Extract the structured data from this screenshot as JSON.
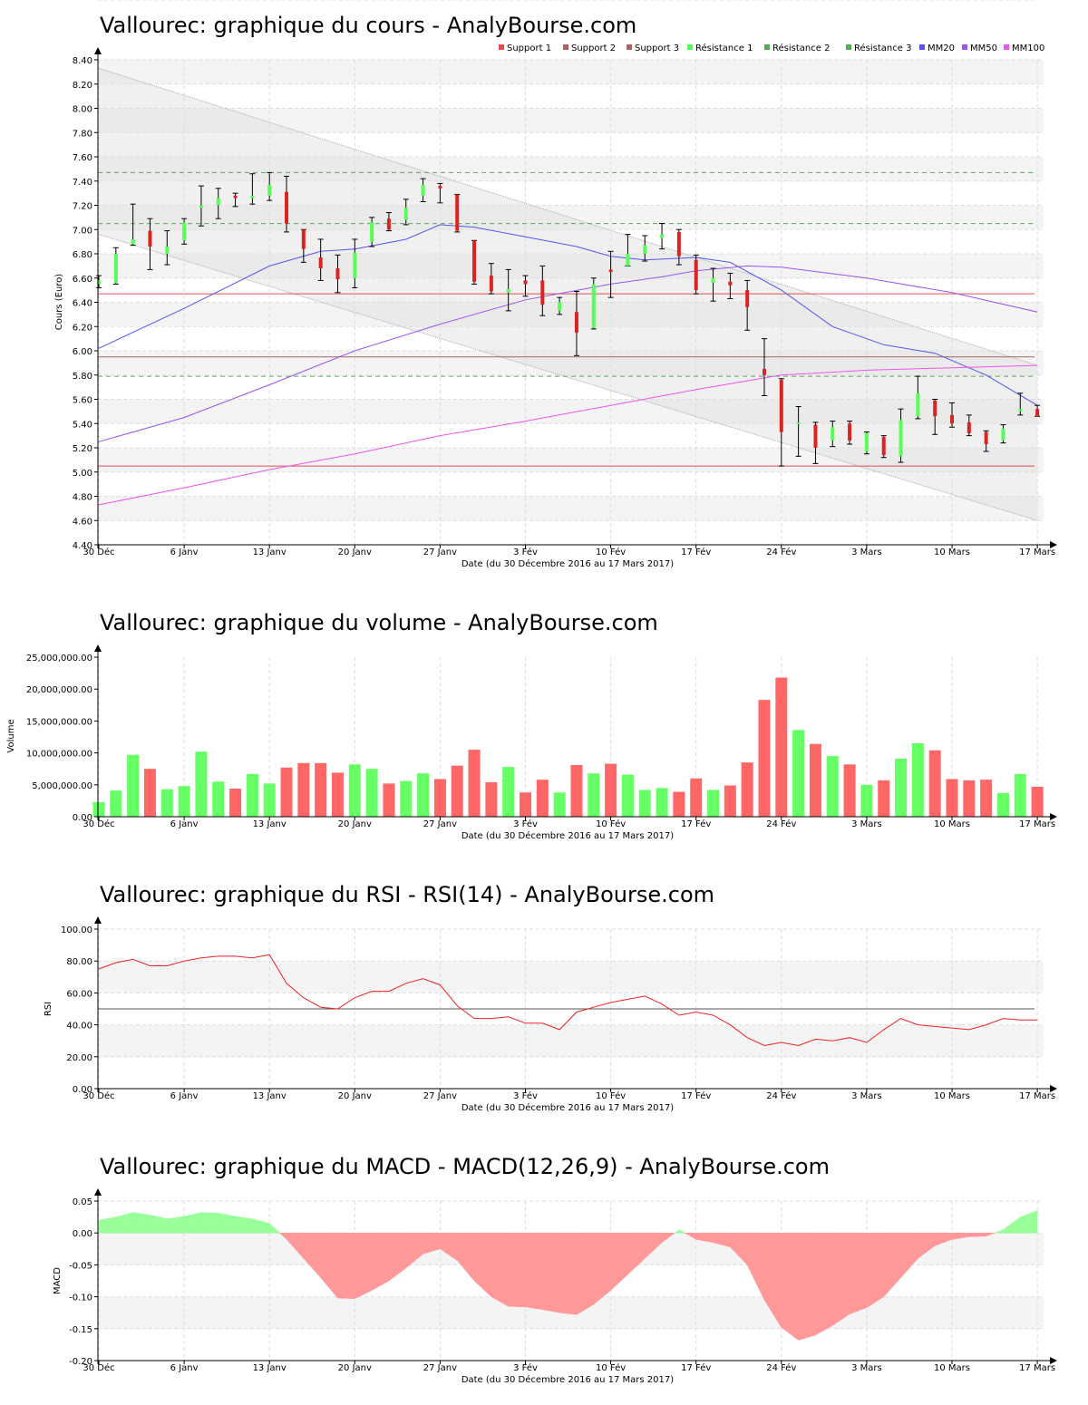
{
  "colors": {
    "up": "#55ff55",
    "down": "#dd2222",
    "vol_up": "#66ff66",
    "vol_down": "#ff6666",
    "band_fill": "#f2f2f2",
    "grid": "#dddddd",
    "support": "#e05050",
    "support2": "#b06060",
    "resistance": "#55aa55",
    "mm20": "#5555ee",
    "mm50": "#9955ee",
    "mm100": "#ee55ee",
    "rsi": "#ee2222",
    "macd_pos": "#99ff99",
    "macd_neg": "#ff9999"
  },
  "shared_x": {
    "ticks": [
      "30 Déc",
      "6 Janv",
      "13 Janv",
      "20 Janv",
      "27 Janv",
      "3 Fév",
      "10 Fév",
      "17 Fév",
      "24 Fév",
      "3 Mars",
      "10 Mars",
      "17 Mars"
    ],
    "tick_index": [
      0,
      5,
      10,
      15,
      20,
      25,
      30,
      35,
      40,
      45,
      50,
      55
    ],
    "label": "Date (du 30 Décembre 2016 au 17 Mars 2017)"
  },
  "chart_data": [
    {
      "type": "candlestick",
      "title": "Vallourec: graphique du cours - AnalyBourse.com",
      "ylabel": "Cours (Euro)",
      "xlabel": "Date (du 30 Décembre 2016 au 17 Mars 2017)",
      "ylim": [
        4.4,
        8.4
      ],
      "yticks": [
        "4.40",
        "4.60",
        "4.80",
        "5.00",
        "5.20",
        "5.40",
        "5.60",
        "5.80",
        "6.00",
        "6.20",
        "6.40",
        "6.60",
        "6.80",
        "7.00",
        "7.20",
        "7.40",
        "7.60",
        "7.80",
        "8.00",
        "8.20",
        "8.40"
      ],
      "legend": [
        "Support 1",
        "Support 2",
        "Support 3",
        "Résistance 1",
        "Résistance 2",
        "Résistance 3",
        "MM20",
        "MM50",
        "MM100"
      ],
      "candles": [
        {
          "o": 6.55,
          "h": 6.62,
          "l": 6.52,
          "c": 6.58
        },
        {
          "o": 6.56,
          "h": 6.85,
          "l": 6.55,
          "c": 6.8
        },
        {
          "o": 6.88,
          "h": 7.21,
          "l": 6.87,
          "c": 6.92
        },
        {
          "o": 6.99,
          "h": 7.09,
          "l": 6.67,
          "c": 6.86
        },
        {
          "o": 6.8,
          "h": 6.99,
          "l": 6.71,
          "c": 6.86
        },
        {
          "o": 6.91,
          "h": 7.09,
          "l": 6.88,
          "c": 7.06
        },
        {
          "o": 7.18,
          "h": 7.36,
          "l": 7.03,
          "c": 7.2
        },
        {
          "o": 7.2,
          "h": 7.34,
          "l": 7.09,
          "c": 7.26
        },
        {
          "o": 7.28,
          "h": 7.3,
          "l": 7.19,
          "c": 7.26
        },
        {
          "o": 7.26,
          "h": 7.46,
          "l": 7.21,
          "c": 7.28
        },
        {
          "o": 7.28,
          "h": 7.47,
          "l": 7.24,
          "c": 7.37
        },
        {
          "o": 7.31,
          "h": 7.44,
          "l": 6.98,
          "c": 7.05
        },
        {
          "o": 7.0,
          "h": 7.0,
          "l": 6.73,
          "c": 6.84
        },
        {
          "o": 6.77,
          "h": 6.92,
          "l": 6.58,
          "c": 6.68
        },
        {
          "o": 6.68,
          "h": 6.79,
          "l": 6.48,
          "c": 6.59
        },
        {
          "o": 6.6,
          "h": 6.92,
          "l": 6.52,
          "c": 6.81
        },
        {
          "o": 6.9,
          "h": 7.1,
          "l": 6.86,
          "c": 7.06
        },
        {
          "o": 7.09,
          "h": 7.14,
          "l": 6.99,
          "c": 7.0
        },
        {
          "o": 7.08,
          "h": 7.25,
          "l": 7.04,
          "c": 7.18
        },
        {
          "o": 7.28,
          "h": 7.42,
          "l": 7.23,
          "c": 7.37
        },
        {
          "o": 7.36,
          "h": 7.38,
          "l": 7.22,
          "c": 7.34
        },
        {
          "o": 7.29,
          "h": 7.29,
          "l": 6.98,
          "c": 6.99
        },
        {
          "o": 6.91,
          "h": 6.91,
          "l": 6.55,
          "c": 6.57
        },
        {
          "o": 6.62,
          "h": 6.72,
          "l": 6.47,
          "c": 6.49
        },
        {
          "o": 6.48,
          "h": 6.67,
          "l": 6.33,
          "c": 6.51
        },
        {
          "o": 6.58,
          "h": 6.62,
          "l": 6.45,
          "c": 6.55
        },
        {
          "o": 6.58,
          "h": 6.7,
          "l": 6.29,
          "c": 6.38
        },
        {
          "o": 6.33,
          "h": 6.44,
          "l": 6.3,
          "c": 6.4
        },
        {
          "o": 6.32,
          "h": 6.49,
          "l": 5.96,
          "c": 6.15
        },
        {
          "o": 6.19,
          "h": 6.6,
          "l": 6.18,
          "c": 6.55
        },
        {
          "o": 6.67,
          "h": 6.82,
          "l": 6.44,
          "c": 6.65
        },
        {
          "o": 6.7,
          "h": 6.96,
          "l": 6.7,
          "c": 6.8
        },
        {
          "o": 6.8,
          "h": 6.95,
          "l": 6.74,
          "c": 6.87
        },
        {
          "o": 6.93,
          "h": 7.05,
          "l": 6.84,
          "c": 6.96
        },
        {
          "o": 6.98,
          "h": 7.0,
          "l": 6.71,
          "c": 6.78
        },
        {
          "o": 6.75,
          "h": 6.79,
          "l": 6.47,
          "c": 6.5
        },
        {
          "o": 6.56,
          "h": 6.68,
          "l": 6.41,
          "c": 6.6
        },
        {
          "o": 6.57,
          "h": 6.64,
          "l": 6.43,
          "c": 6.54
        },
        {
          "o": 6.5,
          "h": 6.58,
          "l": 6.17,
          "c": 6.36
        },
        {
          "o": 5.85,
          "h": 6.1,
          "l": 5.63,
          "c": 5.8
        },
        {
          "o": 5.76,
          "h": 5.77,
          "l": 5.05,
          "c": 5.33
        },
        {
          "o": 5.4,
          "h": 5.54,
          "l": 5.13,
          "c": 5.41
        },
        {
          "o": 5.39,
          "h": 5.41,
          "l": 5.07,
          "c": 5.2
        },
        {
          "o": 5.26,
          "h": 5.42,
          "l": 5.21,
          "c": 5.37
        },
        {
          "o": 5.4,
          "h": 5.42,
          "l": 5.23,
          "c": 5.26
        },
        {
          "o": 5.17,
          "h": 5.33,
          "l": 5.15,
          "c": 5.32
        },
        {
          "o": 5.29,
          "h": 5.3,
          "l": 5.12,
          "c": 5.14
        },
        {
          "o": 5.13,
          "h": 5.52,
          "l": 5.08,
          "c": 5.43
        },
        {
          "o": 5.46,
          "h": 5.79,
          "l": 5.44,
          "c": 5.65
        },
        {
          "o": 5.59,
          "h": 5.6,
          "l": 5.31,
          "c": 5.46
        },
        {
          "o": 5.47,
          "h": 5.57,
          "l": 5.37,
          "c": 5.4
        },
        {
          "o": 5.41,
          "h": 5.47,
          "l": 5.3,
          "c": 5.32
        },
        {
          "o": 5.33,
          "h": 5.34,
          "l": 5.17,
          "c": 5.23
        },
        {
          "o": 5.26,
          "h": 5.39,
          "l": 5.24,
          "c": 5.36
        },
        {
          "o": 5.5,
          "h": 5.65,
          "l": 5.47,
          "c": 5.52
        },
        {
          "o": 5.52,
          "h": 5.55,
          "l": 5.46,
          "c": 5.46
        }
      ],
      "support_levels": [
        6.47,
        5.95,
        5.05
      ],
      "resistance_levels": [
        7.47,
        7.05,
        5.79
      ],
      "mm20": [
        [
          0,
          6.02
        ],
        [
          5,
          6.35
        ],
        [
          10,
          6.7
        ],
        [
          13,
          6.82
        ],
        [
          15,
          6.84
        ],
        [
          18,
          6.92
        ],
        [
          20,
          7.04
        ],
        [
          22,
          7.02
        ],
        [
          25,
          6.94
        ],
        [
          28,
          6.86
        ],
        [
          30,
          6.78
        ],
        [
          32,
          6.75
        ],
        [
          35,
          6.77
        ],
        [
          37,
          6.73
        ],
        [
          40,
          6.5
        ],
        [
          43,
          6.2
        ],
        [
          46,
          6.05
        ],
        [
          49,
          5.98
        ],
        [
          52,
          5.8
        ],
        [
          55,
          5.55
        ]
      ],
      "mm50": [
        [
          0,
          5.25
        ],
        [
          5,
          5.45
        ],
        [
          10,
          5.72
        ],
        [
          15,
          6.0
        ],
        [
          20,
          6.22
        ],
        [
          25,
          6.42
        ],
        [
          30,
          6.55
        ],
        [
          33,
          6.61
        ],
        [
          35,
          6.66
        ],
        [
          38,
          6.7
        ],
        [
          40,
          6.69
        ],
        [
          45,
          6.6
        ],
        [
          50,
          6.48
        ],
        [
          55,
          6.32
        ]
      ],
      "mm100": [
        [
          0,
          4.73
        ],
        [
          5,
          4.87
        ],
        [
          10,
          5.02
        ],
        [
          15,
          5.15
        ],
        [
          20,
          5.3
        ],
        [
          25,
          5.42
        ],
        [
          30,
          5.55
        ],
        [
          35,
          5.68
        ],
        [
          40,
          5.8
        ],
        [
          45,
          5.84
        ],
        [
          50,
          5.86
        ],
        [
          55,
          5.88
        ]
      ],
      "channel_upper": [
        [
          0,
          8.33
        ],
        [
          55,
          5.88
        ]
      ],
      "channel_lower": [
        [
          0,
          6.96
        ],
        [
          55,
          4.6
        ]
      ]
    },
    {
      "type": "bar",
      "title": "Vallourec: graphique du volume - AnalyBourse.com",
      "ylabel": "Volume",
      "xlabel": "Date (du 30 Décembre 2016 au 17 Mars 2017)",
      "ylim": [
        0,
        25000000
      ],
      "yticks": [
        "0.00",
        "5,000,000.00",
        "10,000,000.00",
        "15,000,000.00",
        "20,000,000.00",
        "25,000,000.00"
      ],
      "values": [
        2300000,
        4100000,
        9700000,
        7500000,
        4300000,
        4800000,
        10200000,
        5500000,
        4400000,
        6700000,
        5200000,
        7700000,
        8400000,
        8400000,
        6900000,
        8200000,
        7500000,
        5200000,
        5600000,
        6800000,
        5900000,
        8000000,
        10500000,
        5400000,
        7800000,
        3800000,
        5800000,
        3800000,
        8100000,
        6800000,
        8300000,
        6600000,
        4200000,
        4500000,
        3900000,
        6000000,
        4200000,
        4900000,
        8500000,
        18300000,
        21800000,
        13600000,
        11400000,
        9500000,
        8200000,
        5000000,
        5700000,
        9100000,
        11500000,
        10400000,
        5900000,
        5700000,
        5800000,
        3700000,
        6700000,
        4700000
      ]
    },
    {
      "type": "line",
      "title": "Vallourec: graphique du RSI - RSI(14) - AnalyBourse.com",
      "ylabel": "RSI",
      "xlabel": "Date (du 30 Décembre 2016 au 17 Mars 2017)",
      "ylim": [
        0,
        100
      ],
      "yticks": [
        "0.00",
        "20.00",
        "40.00",
        "60.00",
        "80.00",
        "100.00"
      ],
      "reference": 50,
      "values": [
        75,
        79,
        81,
        77,
        77,
        80,
        82,
        83,
        83,
        82,
        84,
        66,
        57,
        51,
        50,
        57,
        61,
        61,
        66,
        69,
        65,
        52,
        44,
        44,
        45,
        41,
        41,
        37,
        48,
        51,
        54,
        56,
        58,
        53,
        46,
        48,
        46,
        40,
        32,
        27,
        29,
        27,
        31,
        30,
        32,
        29,
        37,
        44,
        40,
        39,
        38,
        37,
        40,
        44,
        43,
        43
      ]
    },
    {
      "type": "area",
      "title": "Vallourec: graphique du MACD - MACD(12,26,9) - AnalyBourse.com",
      "ylabel": "MACD",
      "xlabel": "Date (du 30 Décembre 2016 au 17 Mars 2017)",
      "ylim": [
        -0.2,
        0.05
      ],
      "yticks": [
        "-0.20",
        "-0.15",
        "-0.10",
        "-0.05",
        "0.00",
        "0.05"
      ],
      "values": [
        0.02,
        0.025,
        0.032,
        0.028,
        0.022,
        0.026,
        0.032,
        0.031,
        0.026,
        0.022,
        0.015,
        -0.01,
        -0.04,
        -0.07,
        -0.102,
        -0.103,
        -0.09,
        -0.075,
        -0.055,
        -0.033,
        -0.025,
        -0.043,
        -0.075,
        -0.1,
        -0.115,
        -0.116,
        -0.12,
        -0.125,
        -0.128,
        -0.112,
        -0.09,
        -0.065,
        -0.04,
        -0.015,
        0.005,
        -0.01,
        -0.015,
        -0.022,
        -0.05,
        -0.105,
        -0.148,
        -0.168,
        -0.16,
        -0.145,
        -0.127,
        -0.117,
        -0.1,
        -0.07,
        -0.04,
        -0.02,
        -0.01,
        -0.006,
        -0.005,
        0.005,
        0.025,
        0.035
      ]
    }
  ]
}
